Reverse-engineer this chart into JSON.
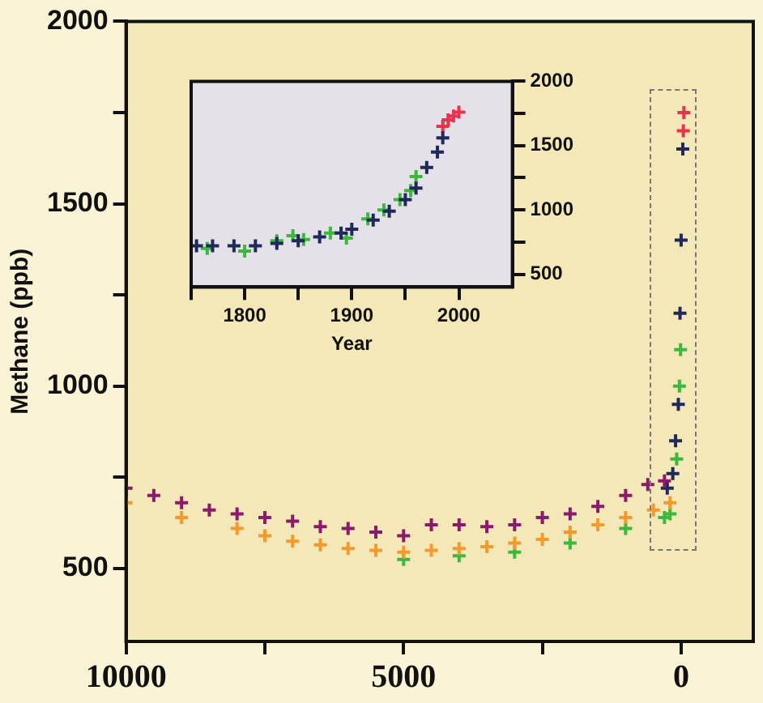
{
  "chart_data": [
    {
      "type": "scatter",
      "ylabel": "Methane (ppb)",
      "xlim": [
        10000,
        -1300
      ],
      "ylim": [
        300,
        2000
      ],
      "xticks": [
        10000,
        {
          "value": 7500,
          "label": null
        },
        5000,
        {
          "value": 2500,
          "label": null
        },
        0
      ],
      "yticks": [
        500,
        {
          "value": 750,
          "label": null
        },
        1000,
        {
          "value": 1250,
          "label": null
        },
        1500,
        {
          "value": 1750,
          "label": null
        },
        2000
      ],
      "grid": false,
      "legend": false,
      "marker": "cross",
      "series": [
        {
          "color": "#8b1a6b",
          "x": [
            10000,
            9500,
            9000,
            8500,
            8000,
            7500,
            7000,
            6500,
            6000,
            5500,
            5000,
            4500,
            4000,
            3500,
            3000,
            2500,
            2000,
            1500,
            1000,
            600,
            300
          ],
          "values": [
            720,
            700,
            680,
            660,
            650,
            640,
            630,
            615,
            610,
            600,
            590,
            620,
            620,
            615,
            620,
            640,
            650,
            670,
            700,
            730,
            740
          ]
        },
        {
          "color": "#f39a2e",
          "x": [
            10000,
            9000,
            8000,
            7500,
            7000,
            6500,
            6000,
            5500,
            5000,
            4500,
            4000,
            3500,
            3000,
            2500,
            2000,
            1500,
            1000,
            500,
            200
          ],
          "values": [
            680,
            640,
            610,
            590,
            575,
            565,
            555,
            550,
            545,
            550,
            555,
            560,
            570,
            580,
            600,
            620,
            640,
            660,
            680
          ]
        },
        {
          "color": "#3cb83c",
          "x": [
            5000,
            4000,
            3000,
            2000,
            1000,
            300,
            200,
            80,
            30,
            10
          ],
          "values": [
            525,
            535,
            545,
            570,
            610,
            640,
            650,
            800,
            1000,
            1100
          ]
        },
        {
          "color": "#1f2a5a",
          "x": [
            250,
            150,
            100,
            50,
            20,
            0,
            -30
          ],
          "values": [
            720,
            760,
            850,
            950,
            1200,
            1400,
            1650
          ]
        },
        {
          "color": "#e8344a",
          "x": [
            -40,
            -50
          ],
          "values": [
            1700,
            1750
          ]
        }
      ]
    },
    {
      "type": "scatter",
      "xlabel": "Year",
      "xlim": [
        1750,
        2050
      ],
      "ylim": [
        400,
        2000
      ],
      "xticks": [
        {
          "value": 1750,
          "label": null
        },
        1800,
        {
          "value": 1850,
          "label": null
        },
        1900,
        {
          "value": 1950,
          "label": null
        },
        2000
      ],
      "yticks": [
        500,
        {
          "value": 750,
          "label": null
        },
        1000,
        {
          "value": 1250,
          "label": null
        },
        1500,
        {
          "value": 1750,
          "label": null
        },
        2000
      ],
      "grid": false,
      "legend": false,
      "marker": "cross",
      "series": [
        {
          "color": "#1f2a5a",
          "x": [
            1755,
            1770,
            1790,
            1810,
            1830,
            1850,
            1870,
            1890,
            1900,
            1920,
            1935,
            1950,
            1960,
            1970,
            1980,
            1985
          ],
          "values": [
            720,
            720,
            720,
            720,
            740,
            760,
            790,
            820,
            850,
            920,
            990,
            1080,
            1170,
            1330,
            1450,
            1560
          ]
        },
        {
          "color": "#3cb83c",
          "x": [
            1765,
            1800,
            1830,
            1845,
            1855,
            1880,
            1895,
            1915,
            1930,
            1945,
            1955,
            1960
          ],
          "values": [
            700,
            680,
            760,
            800,
            770,
            820,
            780,
            930,
            1000,
            1080,
            1150,
            1260
          ]
        },
        {
          "color": "#e8344a",
          "x": [
            1985,
            1990,
            1995,
            2000
          ],
          "values": [
            1650,
            1700,
            1730,
            1760
          ]
        }
      ]
    }
  ]
}
